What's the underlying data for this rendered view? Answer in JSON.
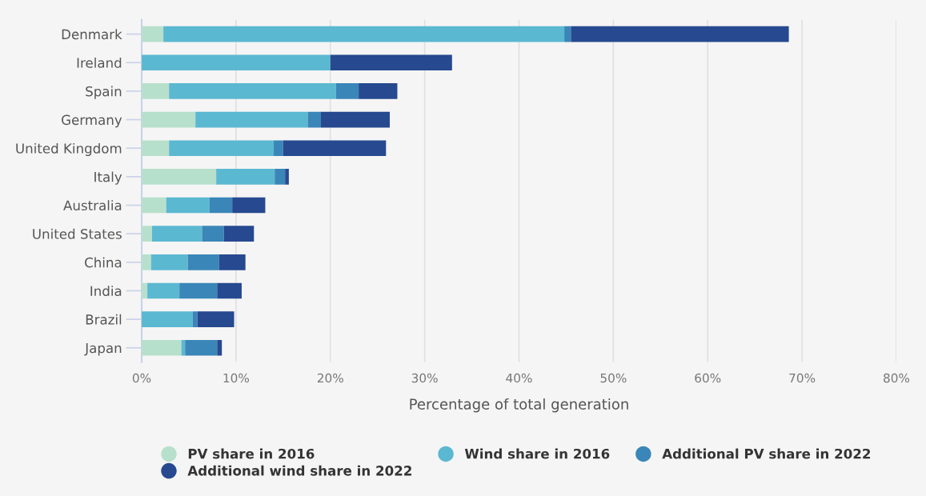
{
  "chart_data": {
    "type": "bar",
    "orientation": "horizontal",
    "stacked": true,
    "categories": [
      "Denmark",
      "Ireland",
      "Spain",
      "Germany",
      "United Kingdom",
      "Italy",
      "Australia",
      "United States",
      "China",
      "India",
      "Brazil",
      "Japan"
    ],
    "series": [
      {
        "name": "PV share in 2016",
        "color": "#b7e0cc",
        "values": [
          2.3,
          0,
          2.9,
          5.7,
          2.9,
          7.9,
          2.6,
          1.1,
          1.0,
          0.6,
          0,
          4.2
        ]
      },
      {
        "name": "Wind share in 2016",
        "color": "#5bb8d1",
        "values": [
          42.5,
          20.0,
          17.7,
          11.9,
          11.1,
          6.2,
          4.6,
          5.3,
          3.9,
          3.4,
          5.4,
          0.4
        ]
      },
      {
        "name": "Additional PV share in 2022",
        "color": "#3a86b8",
        "values": [
          0.7,
          0,
          2.4,
          1.4,
          1.0,
          1.1,
          2.4,
          2.3,
          3.3,
          4.0,
          0.5,
          3.4
        ]
      },
      {
        "name": "Additional wind share in 2022",
        "color": "#26498f",
        "values": [
          23.1,
          12.9,
          4.1,
          7.3,
          10.9,
          0.4,
          3.5,
          3.2,
          2.8,
          2.6,
          3.9,
          0.5
        ]
      }
    ],
    "xlabel": "Percentage of total generation",
    "xlim": [
      0,
      80
    ],
    "xticks": [
      {
        "value": 0,
        "label": "0%"
      },
      {
        "value": 10,
        "label": "10%"
      },
      {
        "value": 20,
        "label": "20%"
      },
      {
        "value": 30,
        "label": "30%"
      },
      {
        "value": 40,
        "label": "40%"
      },
      {
        "value": 50,
        "label": "50%"
      },
      {
        "value": 60,
        "label": "60%"
      },
      {
        "value": 70,
        "label": "70%"
      },
      {
        "value": 80,
        "label": "80%"
      }
    ],
    "grid": "x",
    "legend": "bottom"
  }
}
